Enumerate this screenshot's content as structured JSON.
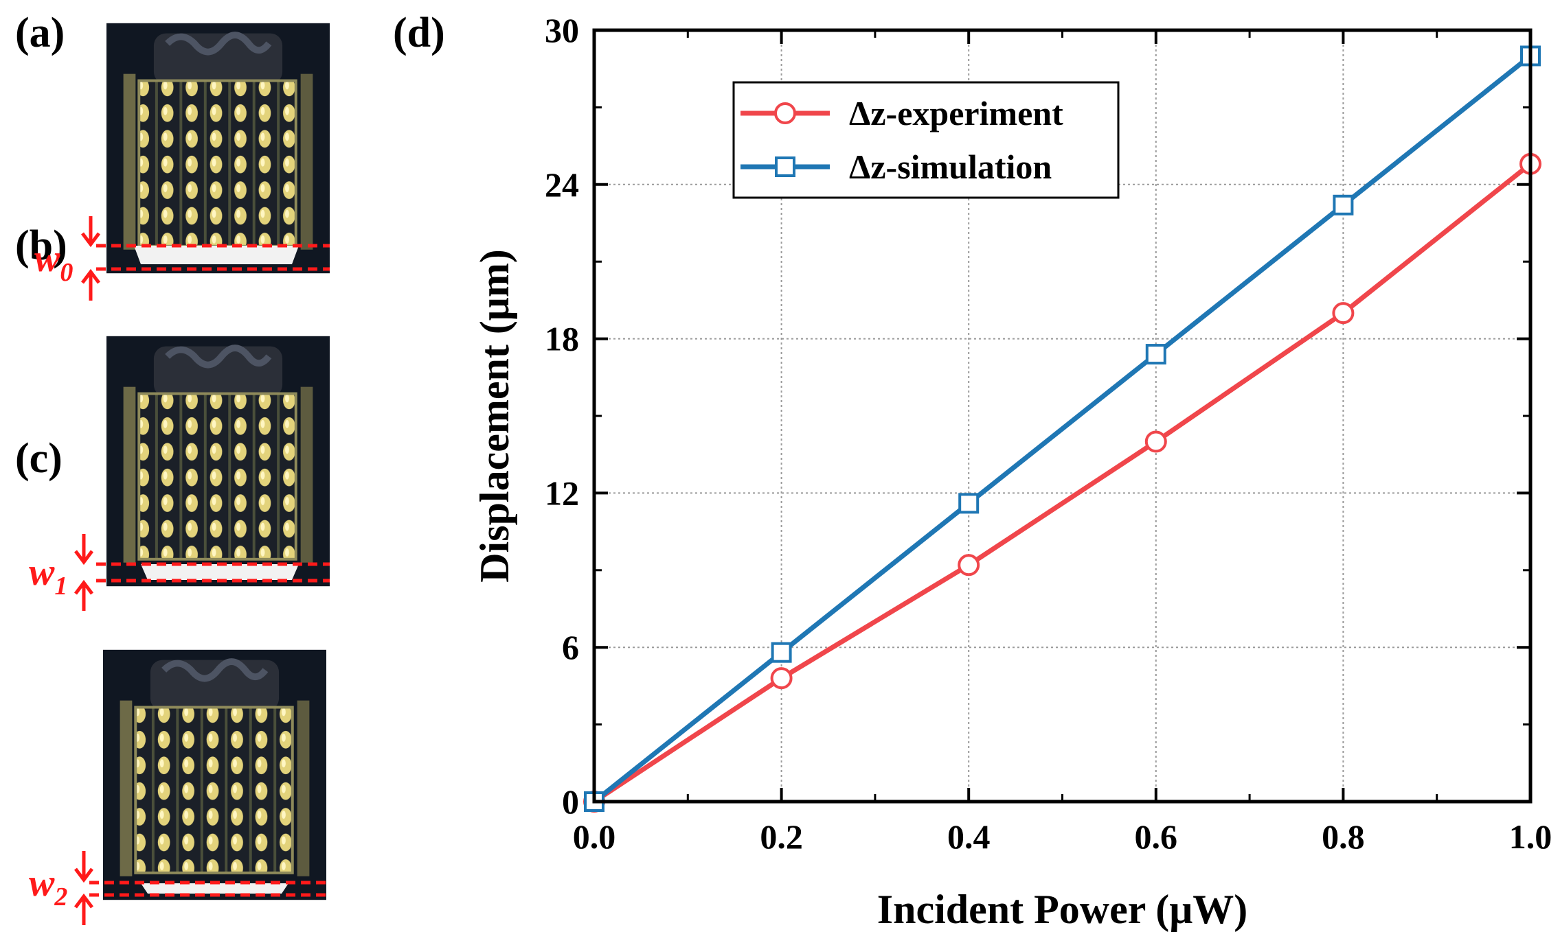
{
  "panels": {
    "a": "(a)",
    "b": "(b)",
    "c": "(c)",
    "d": "(d)"
  },
  "micro_labels": [
    {
      "letter": "w",
      "sub": "0"
    },
    {
      "letter": "w",
      "sub": "1"
    },
    {
      "letter": "w",
      "sub": "2"
    }
  ],
  "colors": {
    "experiment": "#f0464b",
    "simulation": "#1f77b4",
    "marker_w": "#ff1a1a"
  },
  "chart_data": {
    "type": "line",
    "xlabel": "Incident Power (μW)",
    "ylabel": "Displacement (μm)",
    "xlim": [
      0.0,
      1.0
    ],
    "ylim": [
      0,
      30
    ],
    "xticks": [
      "0.0",
      "0.2",
      "0.4",
      "0.6",
      "0.8",
      "1.0"
    ],
    "yticks": [
      "0",
      "6",
      "12",
      "18",
      "24",
      "30"
    ],
    "grid": true,
    "legend_position": "top-left",
    "x": [
      0.0,
      0.2,
      0.4,
      0.6,
      0.8,
      1.0
    ],
    "series": [
      {
        "name": "Δz-experiment",
        "marker": "circle",
        "color": "#f0464b",
        "values": [
          0,
          4.8,
          9.2,
          14.0,
          19.0,
          24.8
        ]
      },
      {
        "name": "Δz-simulation",
        "marker": "square",
        "color": "#1f77b4",
        "values": [
          0,
          5.8,
          11.6,
          17.4,
          23.2,
          29.0
        ]
      }
    ]
  }
}
